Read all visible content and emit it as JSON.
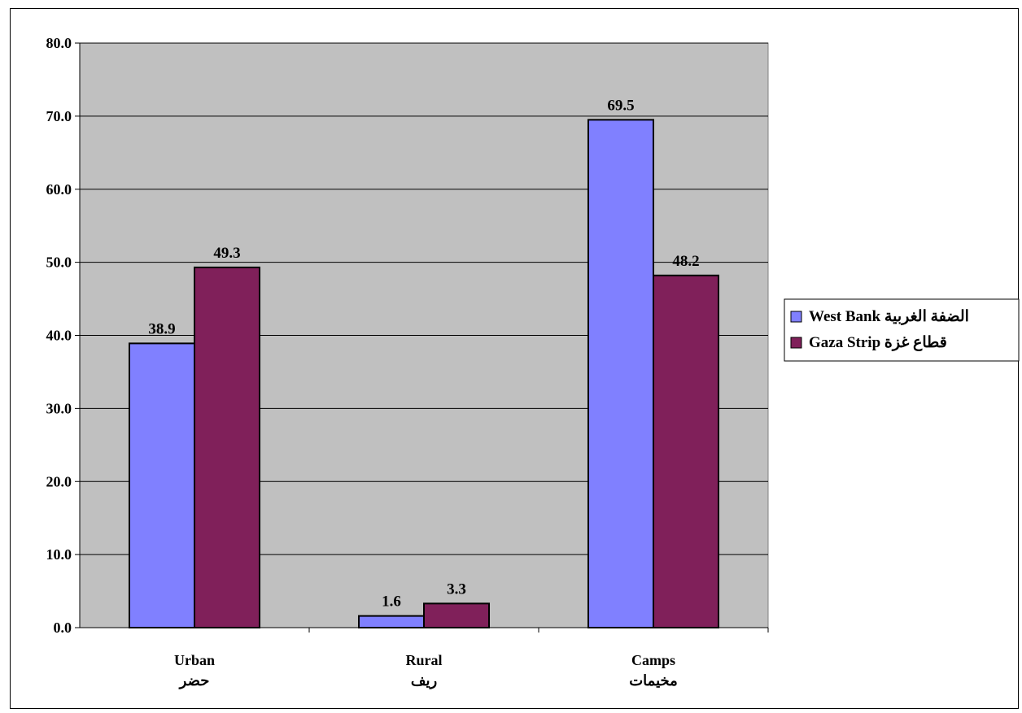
{
  "chart_data": {
    "type": "bar",
    "categories": [
      {
        "line1": "Urban",
        "line2": "حضر"
      },
      {
        "line1": "Rural",
        "line2": "ريف"
      },
      {
        "line1": "Camps",
        "line2": "مخيمات"
      }
    ],
    "series": [
      {
        "name": "West Bank  الضفة الغربية",
        "color": "#8080ff",
        "values": [
          38.9,
          1.6,
          69.5
        ],
        "labels": [
          "38.9",
          "1.6",
          "69.5"
        ]
      },
      {
        "name": "Gaza Strip  قطاع غزة",
        "color": "#80205a",
        "values": [
          49.3,
          3.3,
          48.2
        ],
        "labels": [
          "49.3",
          "3.3",
          "48.2"
        ]
      }
    ],
    "ylim": [
      0,
      80
    ],
    "yticks": [
      "0.0",
      "10.0",
      "20.0",
      "30.0",
      "40.0",
      "50.0",
      "60.0",
      "70.0",
      "80.0"
    ],
    "grid": true,
    "plot_background": "#c0c0c0",
    "legend_position": "right"
  }
}
